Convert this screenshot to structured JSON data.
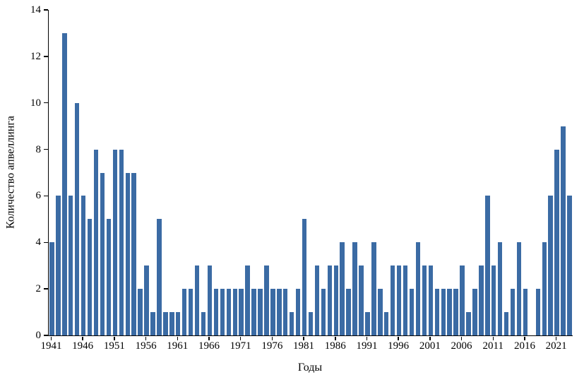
{
  "chart_data": {
    "type": "bar",
    "xlabel": "Годы",
    "ylabel": "Количество апвеллинга",
    "ylim": [
      0,
      14
    ],
    "ytick_step": 2,
    "xtick_step": 5,
    "grid": false,
    "legend": "none",
    "bar_color": "#3b6ba4",
    "x": [
      1941,
      1942,
      1943,
      1944,
      1945,
      1946,
      1947,
      1948,
      1949,
      1950,
      1951,
      1952,
      1953,
      1954,
      1955,
      1956,
      1957,
      1958,
      1959,
      1960,
      1961,
      1962,
      1963,
      1964,
      1965,
      1966,
      1967,
      1968,
      1969,
      1970,
      1971,
      1972,
      1973,
      1974,
      1975,
      1976,
      1977,
      1978,
      1979,
      1980,
      1981,
      1982,
      1983,
      1984,
      1985,
      1986,
      1987,
      1988,
      1989,
      1990,
      1991,
      1992,
      1993,
      1994,
      1995,
      1996,
      1997,
      1998,
      1999,
      2000,
      2001,
      2002,
      2003,
      2004,
      2005,
      2006,
      2007,
      2008,
      2009,
      2010,
      2011,
      2012,
      2013,
      2014,
      2015,
      2016,
      2017,
      2018,
      2019,
      2020,
      2021,
      2022,
      2023
    ],
    "values": [
      4,
      6,
      13,
      6,
      10,
      6,
      5,
      8,
      7,
      5,
      8,
      8,
      7,
      7,
      2,
      3,
      1,
      5,
      1,
      1,
      1,
      2,
      2,
      3,
      1,
      3,
      2,
      2,
      2,
      2,
      2,
      3,
      2,
      2,
      3,
      2,
      2,
      2,
      1,
      2,
      5,
      1,
      3,
      2,
      3,
      3,
      4,
      2,
      4,
      3,
      1,
      4,
      2,
      1,
      3,
      3,
      3,
      2,
      4,
      3,
      3,
      2,
      2,
      2,
      2,
      3,
      1,
      2,
      3,
      6,
      3,
      4,
      1,
      2,
      4,
      2,
      0,
      2,
      4,
      6,
      8,
      9,
      6
    ]
  }
}
